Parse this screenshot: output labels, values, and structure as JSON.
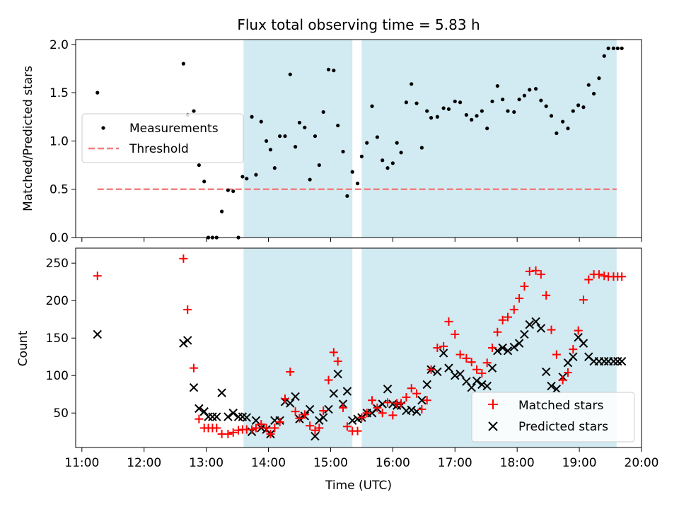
{
  "title": "Flux total observing time = 5.83 h",
  "colors": {
    "shade": "#add8e6",
    "threshold": "#f08080",
    "matched": "#ff0000",
    "predicted": "#000000",
    "measurement": "#000000"
  },
  "chart_data": [
    {
      "type": "scatter",
      "ylabel": "Matched/Predicted stars",
      "xlim": [
        10.9,
        20.0
      ],
      "ylim": [
        0,
        2.05
      ],
      "yticks": [
        "0.0",
        "0.5",
        "1.0",
        "1.5",
        "2.0"
      ],
      "ytick_values": [
        0,
        0.5,
        1.0,
        1.5,
        2.0
      ],
      "legend_position": "center-left",
      "legend": [
        "Measurements",
        "Threshold"
      ],
      "shaded_intervals": [
        [
          "13:36",
          "15:21"
        ],
        [
          "15:30",
          "19:36"
        ]
      ],
      "threshold": {
        "name": "Threshold",
        "y": 0.5,
        "x": [
          "11:15",
          "19:36"
        ]
      },
      "series": [
        {
          "name": "Measurements",
          "x": [
            "11:15",
            "12:38",
            "12:42",
            "12:48",
            "12:53",
            "12:58",
            "13:02",
            "13:06",
            "13:10",
            "13:15",
            "13:21",
            "13:26",
            "13:31",
            "13:35",
            "13:39",
            "13:44",
            "13:48",
            "13:53",
            "13:58",
            "14:02",
            "14:06",
            "14:11",
            "14:16",
            "14:21",
            "14:26",
            "14:30",
            "14:35",
            "14:40",
            "14:45",
            "14:49",
            "14:53",
            "14:58",
            "15:03",
            "15:07",
            "15:12",
            "15:16",
            "15:21",
            "15:26",
            "15:30",
            "15:35",
            "15:40",
            "15:45",
            "15:50",
            "15:55",
            "16:00",
            "16:04",
            "16:08",
            "16:13",
            "16:18",
            "16:23",
            "16:28",
            "16:33",
            "16:37",
            "16:43",
            "16:49",
            "16:54",
            "17:00",
            "17:05",
            "17:11",
            "17:16",
            "17:21",
            "17:26",
            "17:31",
            "17:36",
            "17:41",
            "17:46",
            "17:51",
            "17:57",
            "18:02",
            "18:07",
            "18:12",
            "18:18",
            "18:23",
            "18:28",
            "18:33",
            "18:38",
            "18:44",
            "18:49",
            "18:54",
            "18:59",
            "19:04",
            "19:09",
            "19:14",
            "19:19",
            "19:24",
            "19:28",
            "19:33",
            "19:37",
            "19:41"
          ],
          "y": [
            1.5,
            1.8,
            1.27,
            1.31,
            0.75,
            0.58,
            0.0,
            0.0,
            0.0,
            0.27,
            0.49,
            0.48,
            0.0,
            0.63,
            0.61,
            1.25,
            0.65,
            1.2,
            1.0,
            0.91,
            0.72,
            1.05,
            1.05,
            1.69,
            0.94,
            1.19,
            1.14,
            0.6,
            1.05,
            0.75,
            1.3,
            1.74,
            1.73,
            1.16,
            0.89,
            0.43,
            0.68,
            0.56,
            0.84,
            0.98,
            1.36,
            1.04,
            0.8,
            0.72,
            0.77,
            0.98,
            0.88,
            1.4,
            1.59,
            1.39,
            0.93,
            1.31,
            1.24,
            1.25,
            1.34,
            1.33,
            1.41,
            1.4,
            1.27,
            1.22,
            1.26,
            1.31,
            1.13,
            1.41,
            1.57,
            1.43,
            1.31,
            1.3,
            1.43,
            1.47,
            1.53,
            1.54,
            1.42,
            1.36,
            1.26,
            1.08,
            1.2,
            1.13,
            1.31,
            1.37,
            1.35,
            1.58,
            1.49,
            1.65,
            1.88,
            1.96,
            1.96,
            1.96,
            1.96
          ]
        }
      ]
    },
    {
      "type": "scatter",
      "xlabel": "Time (UTC)",
      "ylabel": "Count",
      "xlim": [
        10.9,
        20.0
      ],
      "ylim": [
        4,
        270
      ],
      "xticks": [
        "11:00",
        "12:00",
        "13:00",
        "14:00",
        "15:00",
        "16:00",
        "17:00",
        "18:00",
        "19:00",
        "20:00"
      ],
      "yticks": [
        "50",
        "100",
        "150",
        "200",
        "250"
      ],
      "ytick_values": [
        50,
        100,
        150,
        200,
        250
      ],
      "legend_position": "lower-right",
      "legend": [
        "Matched stars",
        "Predicted stars"
      ],
      "shaded_intervals": [
        [
          "13:36",
          "15:21"
        ],
        [
          "15:30",
          "19:36"
        ]
      ],
      "series": [
        {
          "name": "Matched stars",
          "x": [
            "11:15",
            "12:38",
            "12:42",
            "12:48",
            "12:53",
            "12:58",
            "13:02",
            "13:06",
            "13:10",
            "13:15",
            "13:21",
            "13:26",
            "13:31",
            "13:35",
            "13:39",
            "13:44",
            "13:48",
            "13:53",
            "13:58",
            "14:02",
            "14:06",
            "14:11",
            "14:16",
            "14:21",
            "14:26",
            "14:30",
            "14:35",
            "14:40",
            "14:45",
            "14:49",
            "14:53",
            "14:58",
            "15:03",
            "15:07",
            "15:12",
            "15:16",
            "15:21",
            "15:26",
            "15:30",
            "15:35",
            "15:40",
            "15:45",
            "15:50",
            "15:55",
            "16:00",
            "16:04",
            "16:08",
            "16:13",
            "16:18",
            "16:23",
            "16:28",
            "16:33",
            "16:37",
            "16:43",
            "16:49",
            "16:54",
            "17:00",
            "17:05",
            "17:11",
            "17:16",
            "17:21",
            "17:26",
            "17:31",
            "17:36",
            "17:41",
            "17:46",
            "17:51",
            "17:57",
            "18:02",
            "18:07",
            "18:12",
            "18:18",
            "18:23",
            "18:28",
            "18:33",
            "18:38",
            "18:44",
            "18:49",
            "18:54",
            "18:59",
            "19:04",
            "19:09",
            "19:14",
            "19:19",
            "19:24",
            "19:28",
            "19:33",
            "19:37",
            "19:41"
          ],
          "y": [
            233,
            256,
            188,
            110,
            42,
            30,
            30,
            30,
            30,
            22,
            22,
            24,
            27,
            28,
            28,
            28,
            30,
            35,
            30,
            22,
            30,
            38,
            69,
            105,
            52,
            43,
            48,
            33,
            27,
            30,
            53,
            94,
            131,
            119,
            57,
            32,
            26,
            26,
            44,
            50,
            67,
            57,
            50,
            64,
            47,
            63,
            63,
            71,
            83,
            76,
            55,
            67,
            108,
            137,
            139,
            172,
            155,
            128,
            123,
            118,
            108,
            103,
            117,
            137,
            158,
            174,
            178,
            188,
            203,
            219,
            239,
            240,
            235,
            207,
            161,
            128,
            94,
            104,
            135,
            160,
            201,
            228,
            235,
            235,
            233,
            232,
            232,
            232,
            232
          ]
        },
        {
          "name": "Predicted stars",
          "x": [
            "11:15",
            "12:38",
            "12:42",
            "12:48",
            "12:53",
            "12:58",
            "13:02",
            "13:06",
            "13:10",
            "13:15",
            "13:21",
            "13:26",
            "13:31",
            "13:35",
            "13:39",
            "13:44",
            "13:48",
            "13:53",
            "13:58",
            "14:02",
            "14:06",
            "14:11",
            "14:16",
            "14:21",
            "14:26",
            "14:30",
            "14:35",
            "14:40",
            "14:45",
            "14:49",
            "14:53",
            "14:58",
            "15:03",
            "15:07",
            "15:12",
            "15:16",
            "15:21",
            "15:26",
            "15:30",
            "15:35",
            "15:40",
            "15:45",
            "15:50",
            "15:55",
            "16:00",
            "16:04",
            "16:08",
            "16:13",
            "16:18",
            "16:23",
            "16:28",
            "16:33",
            "16:37",
            "16:43",
            "16:49",
            "16:54",
            "17:00",
            "17:05",
            "17:11",
            "17:16",
            "17:21",
            "17:26",
            "17:31",
            "17:36",
            "17:41",
            "17:46",
            "17:51",
            "17:57",
            "18:02",
            "18:07",
            "18:12",
            "18:18",
            "18:23",
            "18:28",
            "18:33",
            "18:38",
            "18:44",
            "18:49",
            "18:54",
            "18:59",
            "19:04",
            "19:09",
            "19:14",
            "19:19",
            "19:24",
            "19:28",
            "19:33",
            "19:37",
            "19:41"
          ],
          "y": [
            155,
            143,
            147,
            84,
            56,
            52,
            45,
            45,
            45,
            77,
            45,
            50,
            45,
            45,
            44,
            25,
            40,
            30,
            28,
            22,
            40,
            40,
            65,
            63,
            72,
            42,
            46,
            55,
            19,
            40,
            44,
            55,
            76,
            102,
            62,
            79,
            40,
            42,
            44,
            50,
            50,
            56,
            62,
            82,
            62,
            60,
            60,
            53,
            54,
            52,
            67,
            88,
            108,
            105,
            130,
            110,
            100,
            102,
            92,
            84,
            93,
            88,
            86,
            110,
            133,
            137,
            133,
            138,
            143,
            155,
            168,
            172,
            163,
            105,
            86,
            82,
            98,
            117,
            125,
            151,
            143,
            125,
            119,
            119,
            119,
            119,
            119,
            119,
            119
          ]
        }
      ]
    }
  ]
}
